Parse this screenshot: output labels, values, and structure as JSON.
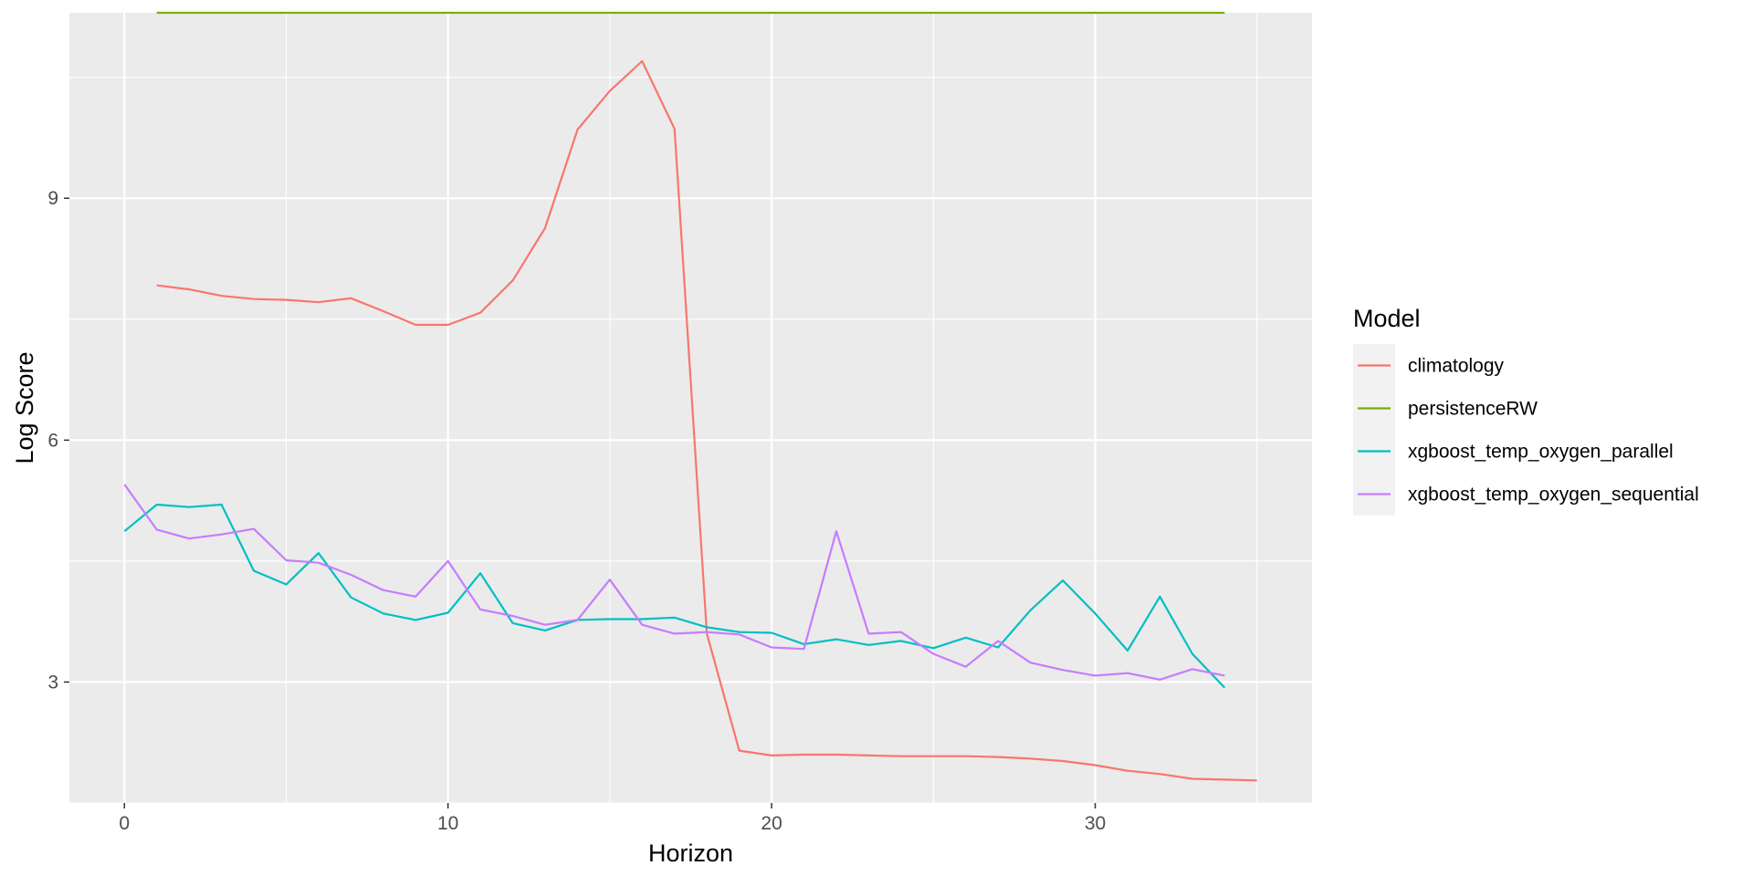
{
  "chart_data": {
    "type": "line",
    "xlabel": "Horizon",
    "ylabel": "Log Score",
    "xlim": [
      -1.7,
      36.7
    ],
    "ylim": [
      1.5,
      11.3
    ],
    "x_ticks": [
      0,
      10,
      20,
      30
    ],
    "y_ticks": [
      3,
      6,
      9
    ],
    "grid": true,
    "legend_title": "Model",
    "legend_position": "right",
    "series": [
      {
        "name": "climatology",
        "color": "#F8766D",
        "x": [
          1,
          2,
          3,
          4,
          5,
          6,
          7,
          8,
          9,
          10,
          11,
          12,
          13,
          14,
          15,
          16,
          17,
          18,
          19,
          20,
          21,
          22,
          23,
          24,
          25,
          26,
          27,
          28,
          29,
          30,
          31,
          32,
          33,
          34,
          35
        ],
        "values": [
          7.92,
          7.87,
          7.79,
          7.75,
          7.74,
          7.71,
          7.76,
          7.6,
          7.43,
          7.43,
          7.58,
          7.98,
          8.63,
          9.85,
          10.33,
          10.7,
          9.86,
          3.6,
          2.15,
          2.09,
          2.1,
          2.1,
          2.09,
          2.08,
          2.08,
          2.08,
          2.07,
          2.05,
          2.02,
          1.97,
          1.9,
          1.86,
          1.8,
          1.79,
          1.78
        ]
      },
      {
        "name": "persistenceRW",
        "color": "#7CAE00",
        "x": [
          1,
          2,
          3,
          4,
          5,
          6,
          7,
          8,
          9,
          10,
          11,
          12,
          13,
          14,
          15,
          16,
          17,
          18,
          19,
          20,
          21,
          22,
          23,
          24,
          25,
          26,
          27,
          28,
          29,
          30,
          31,
          32,
          33,
          34
        ],
        "values": [
          11.3,
          11.3,
          11.3,
          11.3,
          11.3,
          11.3,
          11.3,
          11.3,
          11.3,
          11.3,
          11.3,
          11.3,
          11.3,
          11.3,
          11.3,
          11.3,
          11.3,
          11.3,
          11.3,
          11.3,
          11.3,
          11.3,
          11.3,
          11.3,
          11.3,
          11.3,
          11.3,
          11.3,
          11.3,
          11.3,
          11.3,
          11.3,
          11.3,
          11.3
        ]
      },
      {
        "name": "xgboost_temp_oxygen_parallel",
        "color": "#00BFC4",
        "x": [
          0,
          1,
          2,
          3,
          4,
          5,
          6,
          7,
          8,
          9,
          10,
          11,
          12,
          13,
          14,
          15,
          16,
          17,
          18,
          19,
          20,
          21,
          22,
          23,
          24,
          25,
          26,
          27,
          28,
          29,
          30,
          31,
          32,
          33,
          34
        ],
        "values": [
          4.87,
          5.2,
          5.17,
          5.2,
          4.38,
          4.21,
          4.6,
          4.05,
          3.85,
          3.77,
          3.86,
          4.35,
          3.73,
          3.64,
          3.77,
          3.78,
          3.78,
          3.8,
          3.68,
          3.62,
          3.61,
          3.47,
          3.53,
          3.46,
          3.51,
          3.42,
          3.55,
          3.43,
          3.89,
          4.26,
          3.85,
          3.39,
          4.06,
          3.35,
          2.93
        ]
      },
      {
        "name": "xgboost_temp_oxygen_sequential",
        "color": "#C77CFF",
        "x": [
          0,
          1,
          2,
          3,
          4,
          5,
          6,
          7,
          8,
          9,
          10,
          11,
          12,
          13,
          14,
          15,
          16,
          17,
          18,
          19,
          20,
          21,
          22,
          23,
          24,
          25,
          26,
          27,
          28,
          29,
          30,
          31,
          32,
          33,
          34
        ],
        "values": [
          5.45,
          4.89,
          4.78,
          4.83,
          4.9,
          4.51,
          4.48,
          4.33,
          4.14,
          4.06,
          4.5,
          3.9,
          3.82,
          3.71,
          3.77,
          4.27,
          3.71,
          3.6,
          3.62,
          3.59,
          3.43,
          3.41,
          4.87,
          3.6,
          3.62,
          3.35,
          3.19,
          3.51,
          3.24,
          3.15,
          3.08,
          3.11,
          3.03,
          3.16,
          3.08
        ]
      }
    ]
  }
}
